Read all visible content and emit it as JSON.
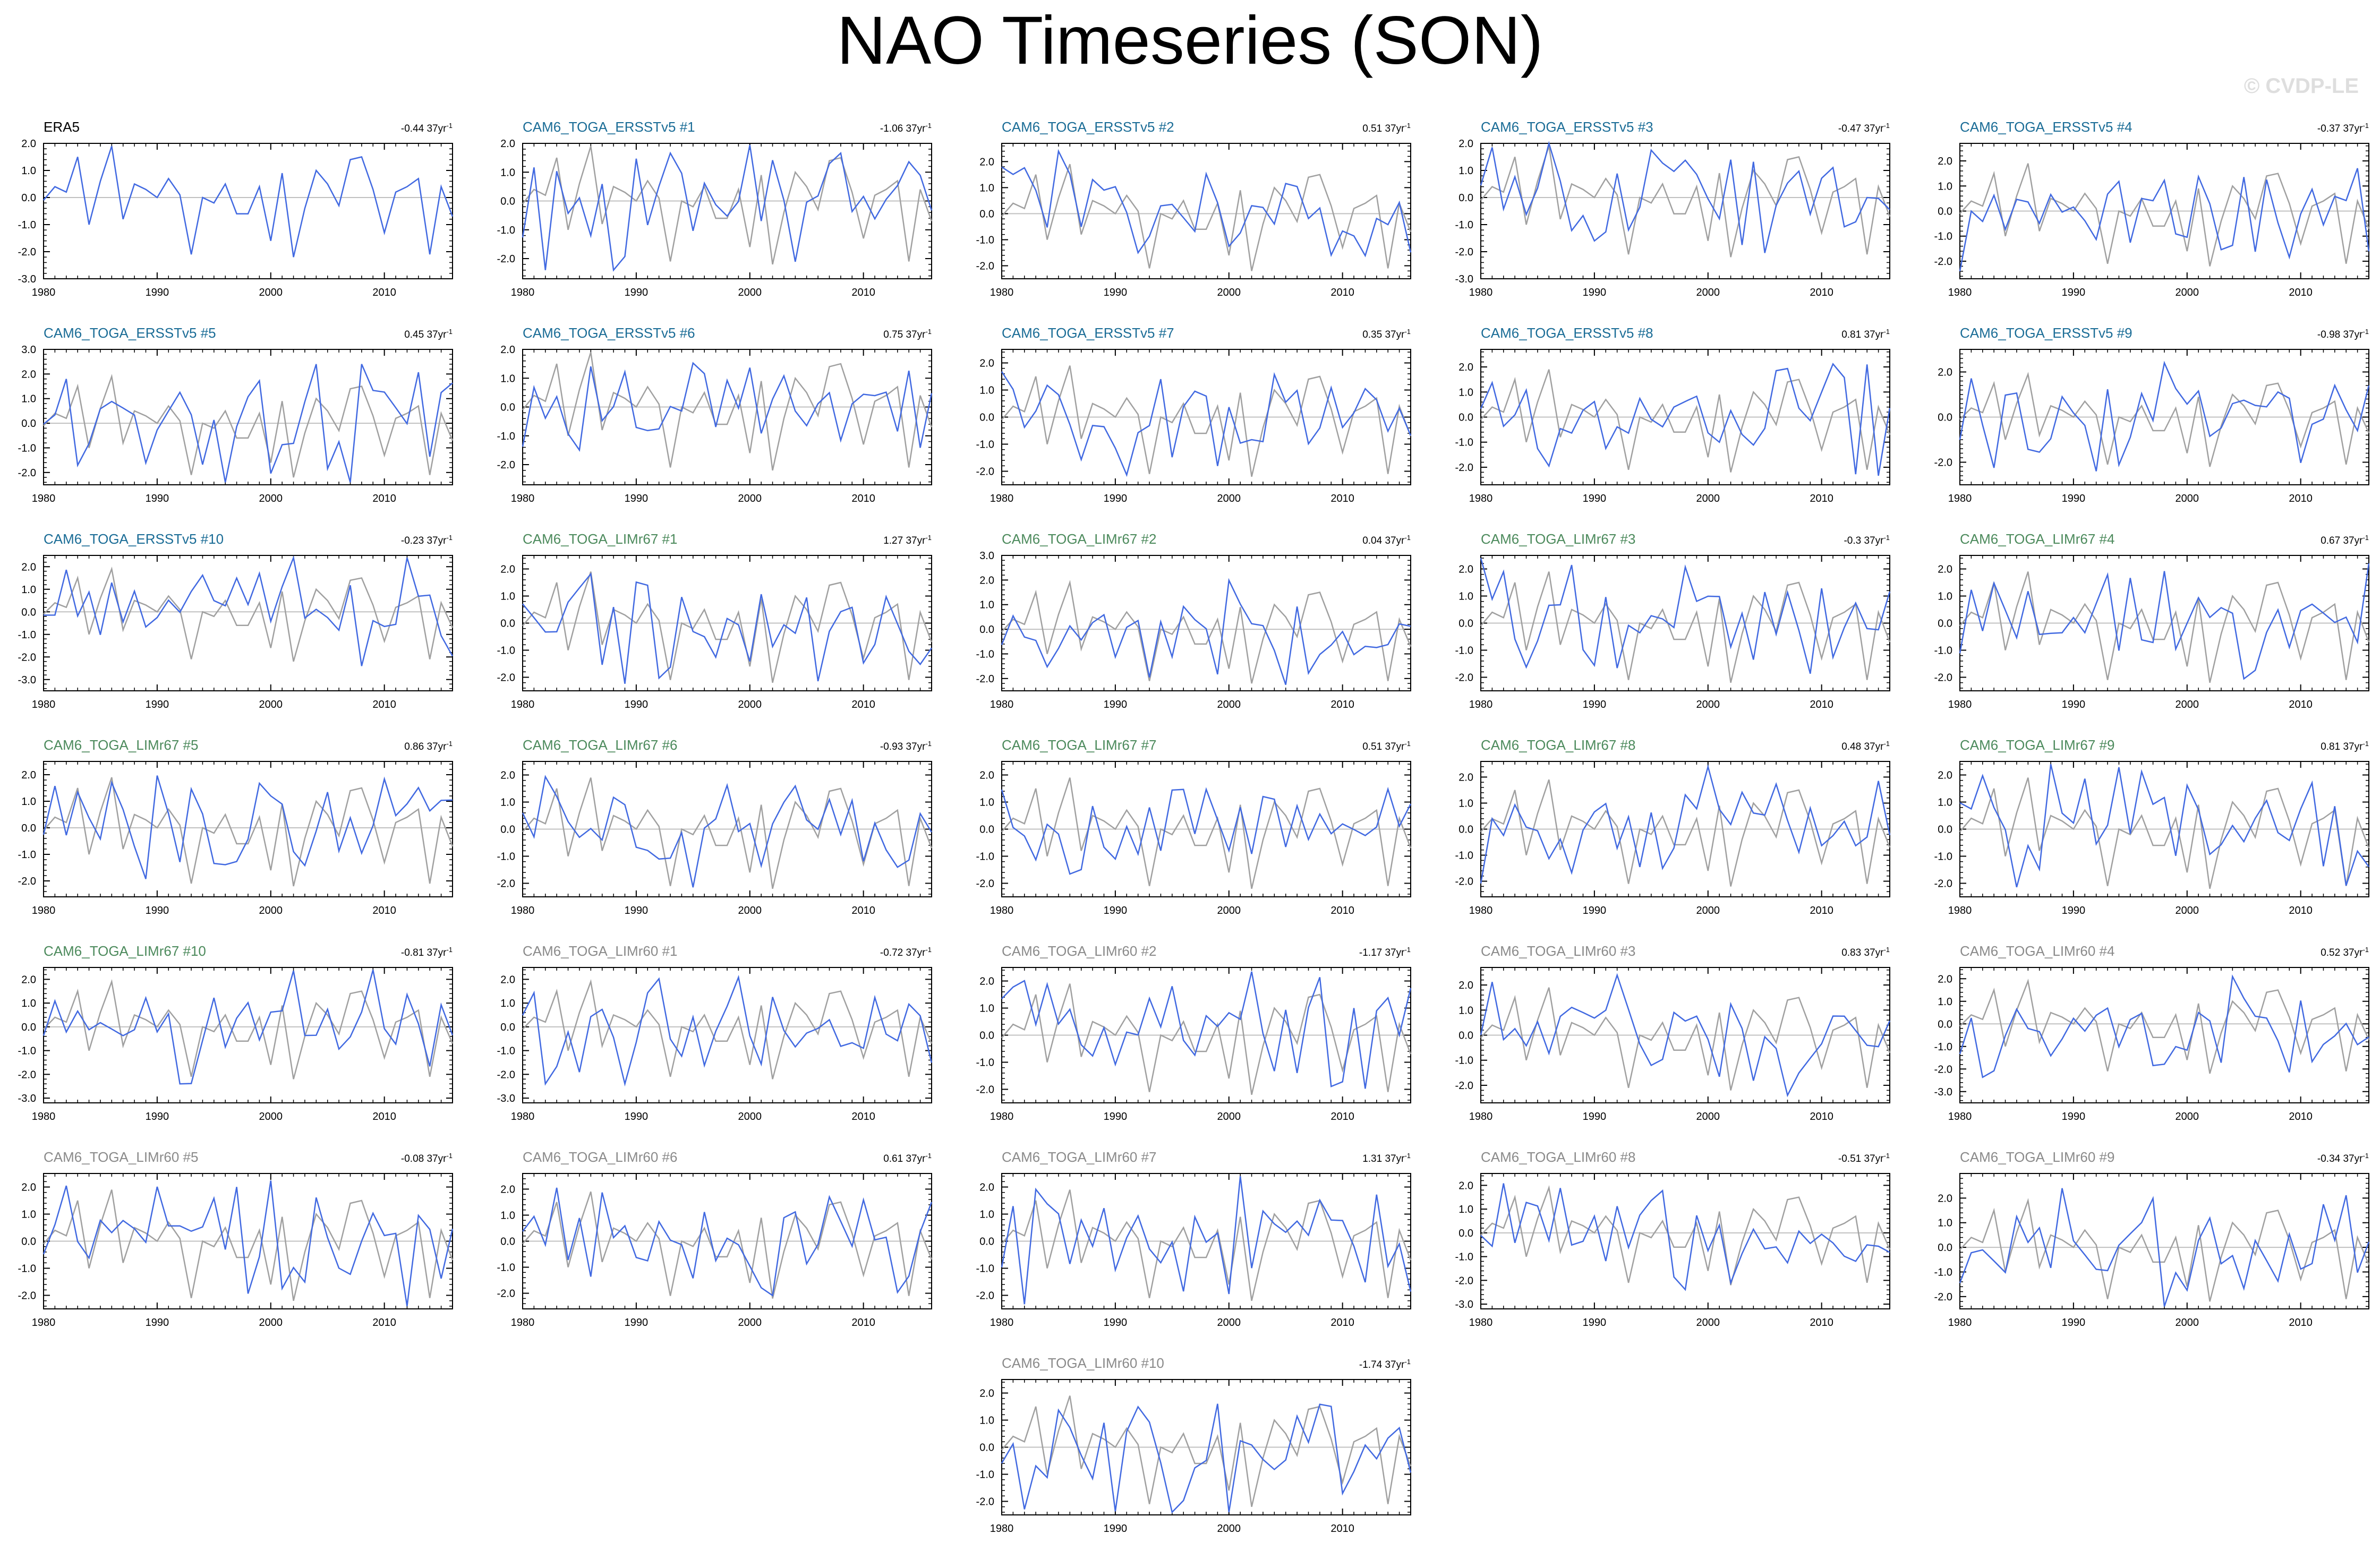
{
  "title": "NAO Timeseries (SON)",
  "credit": "© CVDP-LE",
  "colors": {
    "ERSSTv5": "#1a6c96",
    "LIMr67": "#4c8a5c",
    "LIMr60": "#8a8a8a",
    "obs": "#000000",
    "member_line": "#4169e1",
    "obs_line": "#a0a0a0",
    "zero_line": "#c0c0c0"
  },
  "chart_data": {
    "type": "line",
    "x_start": 1980,
    "x_end": 2016,
    "x_ticks": [
      1980,
      1990,
      2000,
      2010
    ],
    "trend_unit": "37yr",
    "obs_series": {
      "label": "ERA5",
      "values": [
        -0.1,
        0.4,
        0.2,
        1.5,
        -1.0,
        0.6,
        1.9,
        -0.8,
        0.5,
        0.3,
        0.0,
        0.7,
        0.1,
        -2.1,
        0.0,
        -0.2,
        0.5,
        -0.6,
        -0.6,
        0.4,
        -1.6,
        0.9,
        -2.2,
        -0.4,
        1.0,
        0.5,
        -0.3,
        1.4,
        1.5,
        0.3,
        -1.3,
        0.2,
        0.4,
        0.7,
        -2.1,
        0.4,
        -0.7
      ]
    },
    "panels": [
      {
        "label": "ERA5",
        "group": "obs",
        "trend": "-0.44",
        "ylim": [
          -3.0,
          2.0
        ],
        "yticks": [
          "2.0",
          "1.0",
          "0.0",
          "-1.0",
          "-2.0",
          "-3.0"
        ],
        "show_obs": false
      },
      {
        "label": "CAM6_TOGA_ERSSTv5 #1",
        "group": "ERSSTv5",
        "trend": "-1.06",
        "ylim": [
          -2.7,
          2.0
        ],
        "yticks": [
          "2.0",
          "1.0",
          "0.0",
          "-1.0",
          "-2.0"
        ],
        "show_obs": true
      },
      {
        "label": "CAM6_TOGA_ERSSTv5 #2",
        "group": "ERSSTv5",
        "trend": "0.51",
        "ylim": [
          -2.5,
          2.7
        ],
        "yticks": [
          "2.0",
          "1.0",
          "0.0",
          "-1.0",
          "-2.0"
        ],
        "show_obs": true
      },
      {
        "label": "CAM6_TOGA_ERSSTv5 #3",
        "group": "ERSSTv5",
        "trend": "-0.47",
        "ylim": [
          -3.0,
          2.0
        ],
        "yticks": [
          "2.0",
          "1.0",
          "0.0",
          "-1.0",
          "-2.0",
          "-3.0"
        ],
        "show_obs": true
      },
      {
        "label": "CAM6_TOGA_ERSSTv5 #4",
        "group": "ERSSTv5",
        "trend": "-0.37",
        "ylim": [
          -2.7,
          2.7
        ],
        "yticks": [
          "2.0",
          "1.0",
          "0.0",
          "-1.0",
          "-2.0"
        ],
        "show_obs": true
      },
      {
        "label": "CAM6_TOGA_ERSSTv5 #5",
        "group": "ERSSTv5",
        "trend": "0.45",
        "ylim": [
          -2.5,
          3.0
        ],
        "yticks": [
          "3.0",
          "2.0",
          "1.0",
          "0.0",
          "-1.0",
          "-2.0"
        ],
        "show_obs": true
      },
      {
        "label": "CAM6_TOGA_ERSSTv5 #6",
        "group": "ERSSTv5",
        "trend": "0.75",
        "ylim": [
          -2.7,
          2.0
        ],
        "yticks": [
          "2.0",
          "1.0",
          "0.0",
          "-1.0",
          "-2.0"
        ],
        "show_obs": true
      },
      {
        "label": "CAM6_TOGA_ERSSTv5 #7",
        "group": "ERSSTv5",
        "trend": "0.35",
        "ylim": [
          -2.5,
          2.5
        ],
        "yticks": [
          "2.0",
          "1.0",
          "0.0",
          "-1.0",
          "-2.0"
        ],
        "show_obs": true
      },
      {
        "label": "CAM6_TOGA_ERSSTv5 #8",
        "group": "ERSSTv5",
        "trend": "0.81",
        "ylim": [
          -2.7,
          2.7
        ],
        "yticks": [
          "2.0",
          "1.0",
          "0.0",
          "-1.0",
          "-2.0"
        ],
        "show_obs": true
      },
      {
        "label": "CAM6_TOGA_ERSSTv5 #9",
        "group": "ERSSTv5",
        "trend": "-0.98",
        "ylim": [
          -3.0,
          3.0
        ],
        "yticks": [
          "2.0",
          "0.0",
          "-2.0"
        ],
        "show_obs": true
      },
      {
        "label": "CAM6_TOGA_ERSSTv5 #10",
        "group": "ERSSTv5",
        "trend": "-0.23",
        "ylim": [
          -3.5,
          2.5
        ],
        "yticks": [
          "2.0",
          "1.0",
          "0.0",
          "-1.0",
          "-2.0",
          "-3.0"
        ],
        "show_obs": true
      },
      {
        "label": "CAM6_TOGA_LIMr67 #1",
        "group": "LIMr67",
        "trend": "1.27",
        "ylim": [
          -2.5,
          2.5
        ],
        "yticks": [
          "2.0",
          "1.0",
          "0.0",
          "-1.0",
          "-2.0"
        ],
        "show_obs": true
      },
      {
        "label": "CAM6_TOGA_LIMr67 #2",
        "group": "LIMr67",
        "trend": "0.04",
        "ylim": [
          -2.5,
          3.0
        ],
        "yticks": [
          "3.0",
          "2.0",
          "1.0",
          "0.0",
          "-1.0",
          "-2.0"
        ],
        "show_obs": true
      },
      {
        "label": "CAM6_TOGA_LIMr67 #3",
        "group": "LIMr67",
        "trend": "-0.3",
        "ylim": [
          -2.5,
          2.5
        ],
        "yticks": [
          "2.0",
          "1.0",
          "0.0",
          "-1.0",
          "-2.0"
        ],
        "show_obs": true
      },
      {
        "label": "CAM6_TOGA_LIMr67 #4",
        "group": "LIMr67",
        "trend": "0.67",
        "ylim": [
          -2.5,
          2.5
        ],
        "yticks": [
          "2.0",
          "1.0",
          "0.0",
          "-1.0",
          "-2.0"
        ],
        "show_obs": true
      },
      {
        "label": "CAM6_TOGA_LIMr67 #5",
        "group": "LIMr67",
        "trend": "0.86",
        "ylim": [
          -2.6,
          2.5
        ],
        "yticks": [
          "2.0",
          "1.0",
          "0.0",
          "-1.0",
          "-2.0"
        ],
        "show_obs": true
      },
      {
        "label": "CAM6_TOGA_LIMr67 #6",
        "group": "LIMr67",
        "trend": "-0.93",
        "ylim": [
          -2.5,
          2.5
        ],
        "yticks": [
          "2.0",
          "1.0",
          "0.0",
          "-1.0",
          "-2.0"
        ],
        "show_obs": true
      },
      {
        "label": "CAM6_TOGA_LIMr67 #7",
        "group": "LIMr67",
        "trend": "0.51",
        "ylim": [
          -2.5,
          2.5
        ],
        "yticks": [
          "2.0",
          "1.0",
          "0.0",
          "-1.0",
          "-2.0"
        ],
        "show_obs": true
      },
      {
        "label": "CAM6_TOGA_LIMr67 #8",
        "group": "LIMr67",
        "trend": "0.48",
        "ylim": [
          -2.6,
          2.6
        ],
        "yticks": [
          "2.0",
          "1.0",
          "0.0",
          "-1.0",
          "-2.0"
        ],
        "show_obs": true
      },
      {
        "label": "CAM6_TOGA_LIMr67 #9",
        "group": "LIMr67",
        "trend": "0.81",
        "ylim": [
          -2.5,
          2.5
        ],
        "yticks": [
          "2.0",
          "1.0",
          "0.0",
          "-1.0",
          "-2.0"
        ],
        "show_obs": true
      },
      {
        "label": "CAM6_TOGA_LIMr67 #10",
        "group": "LIMr67",
        "trend": "-0.81",
        "ylim": [
          -3.2,
          2.5
        ],
        "yticks": [
          "2.0",
          "1.0",
          "0.0",
          "-1.0",
          "-2.0",
          "-3.0"
        ],
        "show_obs": true
      },
      {
        "label": "CAM6_TOGA_LIMr60 #1",
        "group": "LIMr60",
        "trend": "-0.72",
        "ylim": [
          -3.2,
          2.5
        ],
        "yticks": [
          "2.0",
          "1.0",
          "0.0",
          "-1.0",
          "-2.0",
          "-3.0"
        ],
        "show_obs": true
      },
      {
        "label": "CAM6_TOGA_LIMr60 #2",
        "group": "LIMr60",
        "trend": "-1.17",
        "ylim": [
          -2.5,
          2.5
        ],
        "yticks": [
          "2.0",
          "1.0",
          "0.0",
          "-1.0",
          "-2.0"
        ],
        "show_obs": true
      },
      {
        "label": "CAM6_TOGA_LIMr60 #3",
        "group": "LIMr60",
        "trend": "0.83",
        "ylim": [
          -2.7,
          2.7
        ],
        "yticks": [
          "2.0",
          "1.0",
          "0.0",
          "-1.0",
          "-2.0"
        ],
        "show_obs": true
      },
      {
        "label": "CAM6_TOGA_LIMr60 #4",
        "group": "LIMr60",
        "trend": "0.52",
        "ylim": [
          -3.5,
          2.5
        ],
        "yticks": [
          "2.0",
          "1.0",
          "0.0",
          "-1.0",
          "-2.0",
          "-3.0"
        ],
        "show_obs": true
      },
      {
        "label": "CAM6_TOGA_LIMr60 #5",
        "group": "LIMr60",
        "trend": "-0.08",
        "ylim": [
          -2.5,
          2.5
        ],
        "yticks": [
          "2.0",
          "1.0",
          "0.0",
          "-1.0",
          "-2.0"
        ],
        "show_obs": true
      },
      {
        "label": "CAM6_TOGA_LIMr60 #6",
        "group": "LIMr60",
        "trend": "0.61",
        "ylim": [
          -2.6,
          2.6
        ],
        "yticks": [
          "2.0",
          "1.0",
          "0.0",
          "-1.0",
          "-2.0"
        ],
        "show_obs": true
      },
      {
        "label": "CAM6_TOGA_LIMr60 #7",
        "group": "LIMr60",
        "trend": "1.31",
        "ylim": [
          -2.5,
          2.5
        ],
        "yticks": [
          "2.0",
          "1.0",
          "0.0",
          "-1.0",
          "-2.0"
        ],
        "show_obs": true
      },
      {
        "label": "CAM6_TOGA_LIMr60 #8",
        "group": "LIMr60",
        "trend": "-0.51",
        "ylim": [
          -3.2,
          2.5
        ],
        "yticks": [
          "2.0",
          "1.0",
          "0.0",
          "-1.0",
          "-2.0",
          "-3.0"
        ],
        "show_obs": true
      },
      {
        "label": "CAM6_TOGA_LIMr60 #9",
        "group": "LIMr60",
        "trend": "-0.34",
        "ylim": [
          -2.5,
          3.0
        ],
        "yticks": [
          "2.0",
          "1.0",
          "0.0",
          "-1.0",
          "-2.0"
        ],
        "show_obs": true
      },
      {
        "label": "CAM6_TOGA_LIMr60 #10",
        "group": "LIMr60",
        "trend": "-1.74",
        "ylim": [
          -2.5,
          2.5
        ],
        "yticks": [
          "2.0",
          "1.0",
          "0.0",
          "-1.0",
          "-2.0"
        ],
        "show_obs": true
      }
    ]
  }
}
